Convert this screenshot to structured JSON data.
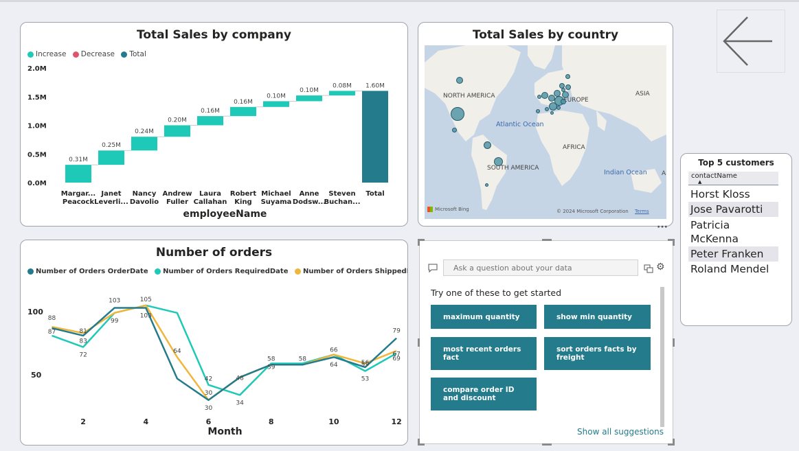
{
  "waterfall": {
    "title": "Total Sales by company",
    "legend": [
      {
        "label": "Increase",
        "color": "#1ec9b7"
      },
      {
        "label": "Decrease",
        "color": "#e0536d"
      },
      {
        "label": "Total",
        "color": "#247b8b"
      }
    ],
    "xlabel": "employeeName",
    "y_ticks": [
      "2.0M",
      "1.5M",
      "1.0M",
      "0.5M",
      "0.0M"
    ]
  },
  "map": {
    "title": "Total Sales by country",
    "labels": [
      "NORTH AMERICA",
      "EUROPE",
      "ASIA",
      "AFRICA",
      "SOUTH AMERICA",
      "A"
    ],
    "oceans": [
      "Atlantic Ocean",
      "Indian Ocean"
    ],
    "bing": "Microsoft Bing",
    "copyright": "© 2024 Microsoft Corporation",
    "terms": "Terms"
  },
  "orders": {
    "title": "Number of orders",
    "legend": [
      {
        "label": "Number of Orders OrderDate",
        "color": "#247b8b"
      },
      {
        "label": "Number of Orders RequiredDate",
        "color": "#1ec9b7"
      },
      {
        "label": "Number of Orders ShippedDate",
        "color": "#f0b63c"
      }
    ],
    "xlabel": "Month",
    "x_ticks": [
      "2",
      "4",
      "6",
      "8",
      "10",
      "12"
    ],
    "y_ticks": [
      "100",
      "50"
    ]
  },
  "qa": {
    "placeholder": "Ask a question about your data",
    "prompt": "Try one of these to get started",
    "suggestions": [
      "maximum quantity",
      "show min quantity",
      "most recent orders fact",
      "sort orders facts by freight",
      "compare order ID and discount"
    ],
    "show_all": "Show all suggestions",
    "more": "···"
  },
  "customers": {
    "title": "Top 5 customers",
    "column": "contactName",
    "rows": [
      "Horst Kloss",
      "Jose Pavarotti",
      "Patricia McKenna",
      "Peter Franken",
      "Roland Mendel"
    ]
  },
  "chart_data": [
    {
      "type": "bar",
      "title": "Total Sales by company",
      "xlabel": "employeeName",
      "ylabel": "",
      "ylim": [
        0,
        2.0
      ],
      "unit": "M",
      "categories": [
        "Margar... Peacock",
        "Janet Leverli...",
        "Nancy Davolio",
        "Andrew Fuller",
        "Laura Callahan",
        "Robert King",
        "Michael Suyama",
        "Anne Dodsw...",
        "Steven Buchan...",
        "Total"
      ],
      "values": [
        0.31,
        0.25,
        0.24,
        0.2,
        0.16,
        0.16,
        0.1,
        0.1,
        0.08,
        1.6
      ],
      "data_labels": [
        "0.31M",
        "0.25M",
        "0.24M",
        "0.20M",
        "0.16M",
        "0.16M",
        "0.10M",
        "0.10M",
        "0.08M",
        "1.60M"
      ],
      "waterfall": true,
      "grid": false,
      "legend_position": "top-left"
    },
    {
      "type": "line",
      "title": "Number of orders",
      "xlabel": "Month",
      "ylabel": "",
      "x": [
        1,
        2,
        3,
        4,
        5,
        6,
        7,
        8,
        9,
        10,
        11,
        12
      ],
      "xlim": [
        0.5,
        12.5
      ],
      "ylim": [
        25,
        118
      ],
      "series": [
        {
          "name": "Number of Orders OrderDate",
          "color": "#247b8b",
          "values": [
            87,
            81,
            103,
            103,
            47,
            30,
            48,
            58,
            58,
            64,
            56,
            79
          ]
        },
        {
          "name": "Number of Orders RequiredDate",
          "color": "#1ec9b7",
          "values": [
            81,
            72,
            99,
            105,
            99,
            42,
            34,
            59,
            59,
            66,
            53,
            67
          ]
        },
        {
          "name": "Number of Orders ShippedDate",
          "color": "#f0b63c",
          "values": [
            88,
            83,
            99,
            105,
            64,
            30,
            48,
            58,
            58,
            66,
            59,
            69
          ]
        }
      ],
      "data_labels": [
        {
          "x": 1,
          "text": "88",
          "series": 2
        },
        {
          "x": 1,
          "text": "87",
          "series": 0
        },
        {
          "x": 2,
          "text": "81",
          "series": 0
        },
        {
          "x": 2,
          "text": "83",
          "series": 2
        },
        {
          "x": 2,
          "text": "72",
          "series": 1
        },
        {
          "x": 3,
          "text": "103",
          "series": 0
        },
        {
          "x": 3,
          "text": "99",
          "series": 2
        },
        {
          "x": 4,
          "text": "105",
          "series": 2
        },
        {
          "x": 4,
          "text": "103",
          "series": 0
        },
        {
          "x": 5,
          "text": "64",
          "series": 2
        },
        {
          "x": 6,
          "text": "42",
          "series": 1
        },
        {
          "x": 6,
          "text": "30",
          "series": 0
        },
        {
          "x": 6,
          "text": "30",
          "series": 2
        },
        {
          "x": 7,
          "text": "48",
          "series": 0
        },
        {
          "x": 7,
          "text": "34",
          "series": 1
        },
        {
          "x": 8,
          "text": "58",
          "series": 0
        },
        {
          "x": 8,
          "text": "59",
          "series": 1
        },
        {
          "x": 9,
          "text": "58",
          "series": 0
        },
        {
          "x": 10,
          "text": "64",
          "series": 0
        },
        {
          "x": 10,
          "text": "66",
          "series": 2
        },
        {
          "x": 11,
          "text": "56",
          "series": 0
        },
        {
          "x": 11,
          "text": "59",
          "series": 2
        },
        {
          "x": 11,
          "text": "53",
          "series": 1
        },
        {
          "x": 12,
          "text": "79",
          "series": 0
        },
        {
          "x": 12,
          "text": "67",
          "series": 1
        },
        {
          "x": 12,
          "text": "69",
          "series": 2
        }
      ],
      "grid": false,
      "legend_position": "top-left"
    }
  ]
}
